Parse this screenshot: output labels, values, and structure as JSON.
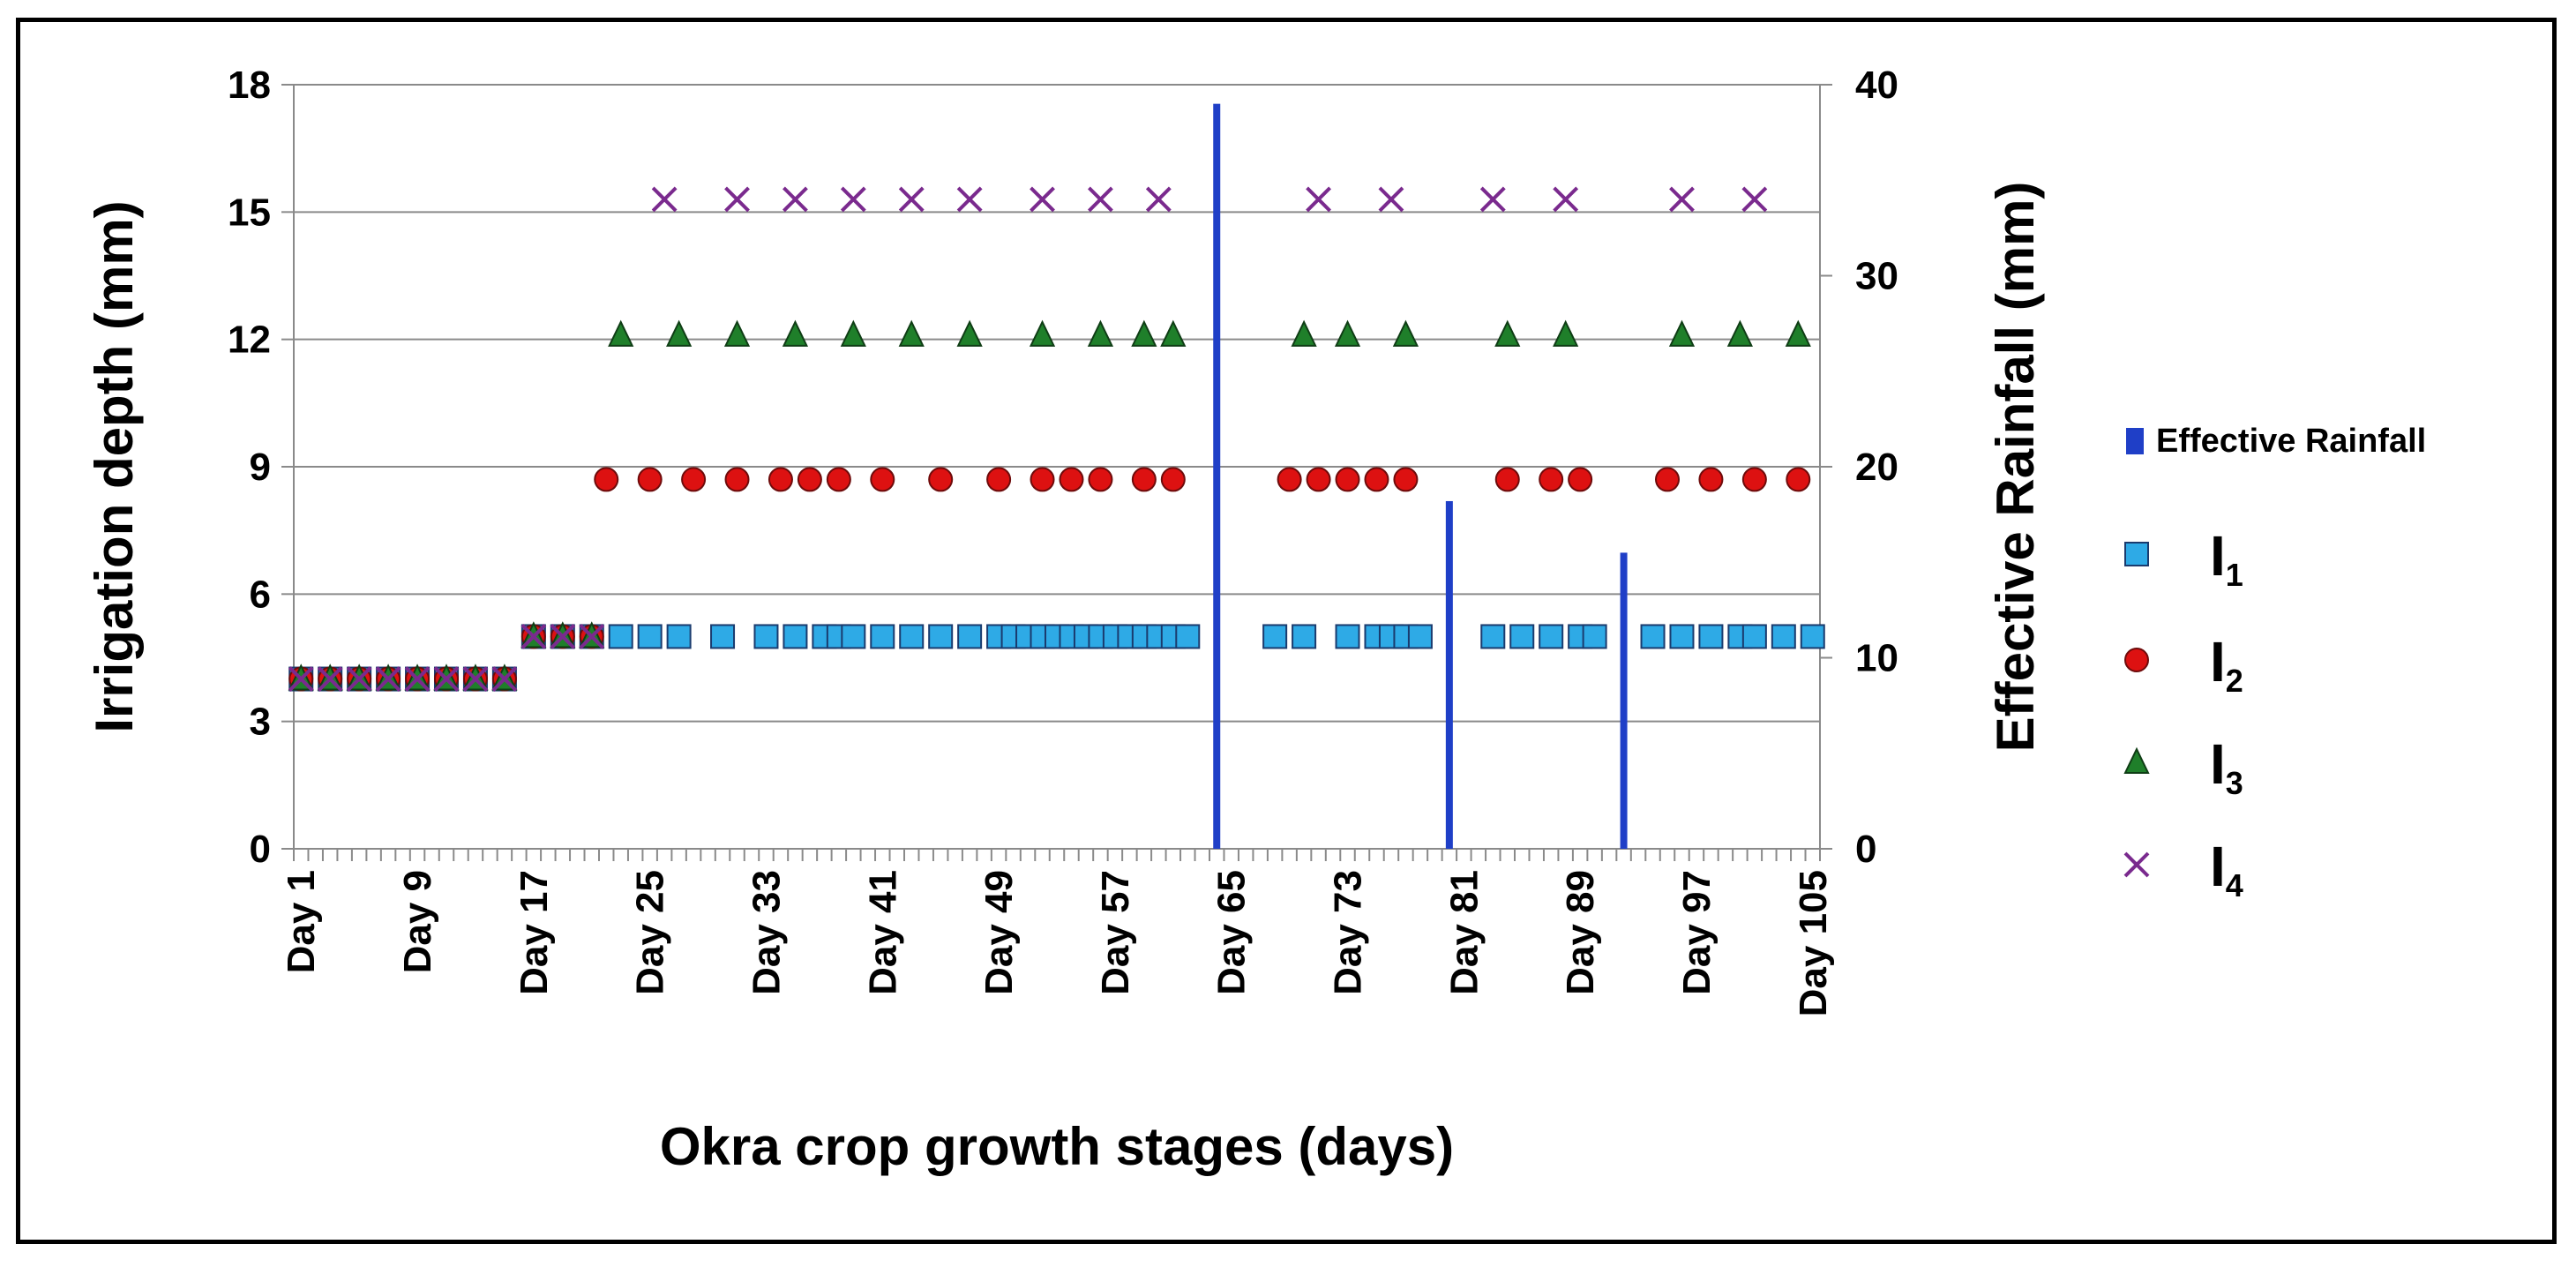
{
  "chart_data": {
    "type": "scatter",
    "title": "",
    "xlabel": "Okra crop growth stages (days)",
    "ylabel": "Irrigation depth (mm)",
    "y2label": "Effective Rainfall (mm)",
    "x_domain": [
      1,
      105
    ],
    "ylim": [
      0,
      18
    ],
    "yticks": [
      0,
      3,
      6,
      9,
      12,
      15,
      18
    ],
    "y2lim": [
      0,
      40
    ],
    "y2ticks": [
      0,
      10,
      20,
      30,
      40
    ],
    "x_tick_labels": [
      {
        "day": 1,
        "label": "Day 1"
      },
      {
        "day": 9,
        "label": "Day 9"
      },
      {
        "day": 17,
        "label": "Day 17"
      },
      {
        "day": 25,
        "label": "Day 25"
      },
      {
        "day": 33,
        "label": "Day 33"
      },
      {
        "day": 41,
        "label": "Day 41"
      },
      {
        "day": 49,
        "label": "Day 49"
      },
      {
        "day": 57,
        "label": "Day 57"
      },
      {
        "day": 65,
        "label": "Day 65"
      },
      {
        "day": 73,
        "label": "Day 73"
      },
      {
        "day": 81,
        "label": "Day 81"
      },
      {
        "day": 89,
        "label": "Day 89"
      },
      {
        "day": 97,
        "label": "Day 97"
      },
      {
        "day": 105,
        "label": "Day 105"
      }
    ],
    "rainfall": {
      "name": "Effective Rainfall",
      "color": "#1f3fc7",
      "axis": "secondary",
      "days": [
        64,
        80,
        92
      ],
      "values": [
        39,
        18.2,
        15.5
      ]
    },
    "series": [
      {
        "name": "I",
        "subscript": "1",
        "marker": "square",
        "color": "#2eaae6",
        "days": [
          1,
          3,
          5,
          7,
          9,
          11,
          13,
          15,
          17,
          19,
          21,
          23,
          25,
          27,
          30,
          33,
          35,
          37,
          38,
          39,
          41,
          43,
          45,
          47,
          49,
          50,
          51,
          52,
          53,
          54,
          55,
          56,
          57,
          58,
          59,
          60,
          61,
          62,
          68,
          70,
          73,
          75,
          76,
          77,
          78,
          83,
          85,
          87,
          89,
          90,
          94,
          96,
          98,
          100,
          101,
          103,
          105
        ],
        "values": [
          4,
          4,
          4,
          4,
          4,
          4,
          4,
          4,
          5,
          5,
          5,
          5,
          5,
          5,
          5,
          5,
          5,
          5,
          5,
          5,
          5,
          5,
          5,
          5,
          5,
          5,
          5,
          5,
          5,
          5,
          5,
          5,
          5,
          5,
          5,
          5,
          5,
          5,
          5,
          5,
          5,
          5,
          5,
          5,
          5,
          5,
          5,
          5,
          5,
          5,
          5,
          5,
          5,
          5,
          5,
          5,
          5
        ]
      },
      {
        "name": "I",
        "subscript": "2",
        "marker": "circle",
        "color": "#dd1111",
        "days": [
          1,
          3,
          5,
          7,
          9,
          11,
          13,
          15,
          17,
          19,
          21,
          22,
          25,
          28,
          31,
          34,
          36,
          38,
          41,
          45,
          49,
          52,
          54,
          56,
          59,
          61,
          69,
          71,
          73,
          75,
          77,
          84,
          87,
          89,
          95,
          98,
          101,
          104
        ],
        "values": [
          4,
          4,
          4,
          4,
          4,
          4,
          4,
          4,
          5,
          5,
          5,
          8.7,
          8.7,
          8.7,
          8.7,
          8.7,
          8.7,
          8.7,
          8.7,
          8.7,
          8.7,
          8.7,
          8.7,
          8.7,
          8.7,
          8.7,
          8.7,
          8.7,
          8.7,
          8.7,
          8.7,
          8.7,
          8.7,
          8.7,
          8.7,
          8.7,
          8.7,
          8.7
        ]
      },
      {
        "name": "I",
        "subscript": "3",
        "marker": "triangle",
        "color": "#1f7f2a",
        "days": [
          1,
          3,
          5,
          7,
          9,
          11,
          13,
          15,
          17,
          19,
          21,
          23,
          27,
          31,
          35,
          39,
          43,
          47,
          52,
          56,
          59,
          61,
          70,
          73,
          77,
          84,
          88,
          96,
          100,
          104
        ],
        "values": [
          4,
          4,
          4,
          4,
          4,
          4,
          4,
          4,
          5,
          5,
          5,
          12.1,
          12.1,
          12.1,
          12.1,
          12.1,
          12.1,
          12.1,
          12.1,
          12.1,
          12.1,
          12.1,
          12.1,
          12.1,
          12.1,
          12.1,
          12.1,
          12.1,
          12.1,
          12.1
        ]
      },
      {
        "name": "I",
        "subscript": "4",
        "marker": "x",
        "color": "#7a2a8e",
        "days": [
          1,
          3,
          5,
          7,
          9,
          11,
          13,
          15,
          17,
          19,
          21,
          26,
          31,
          35,
          39,
          43,
          47,
          52,
          56,
          60,
          71,
          76,
          83,
          88,
          96,
          101
        ],
        "values": [
          4,
          4,
          4,
          4,
          4,
          4,
          4,
          4,
          5,
          5,
          5,
          15.3,
          15.3,
          15.3,
          15.3,
          15.3,
          15.3,
          15.3,
          15.3,
          15.3,
          15.3,
          15.3,
          15.3,
          15.3,
          15.3,
          15.3
        ]
      }
    ],
    "legend": {
      "position": "right",
      "rainfall_label": "Effective Rainfall"
    }
  }
}
